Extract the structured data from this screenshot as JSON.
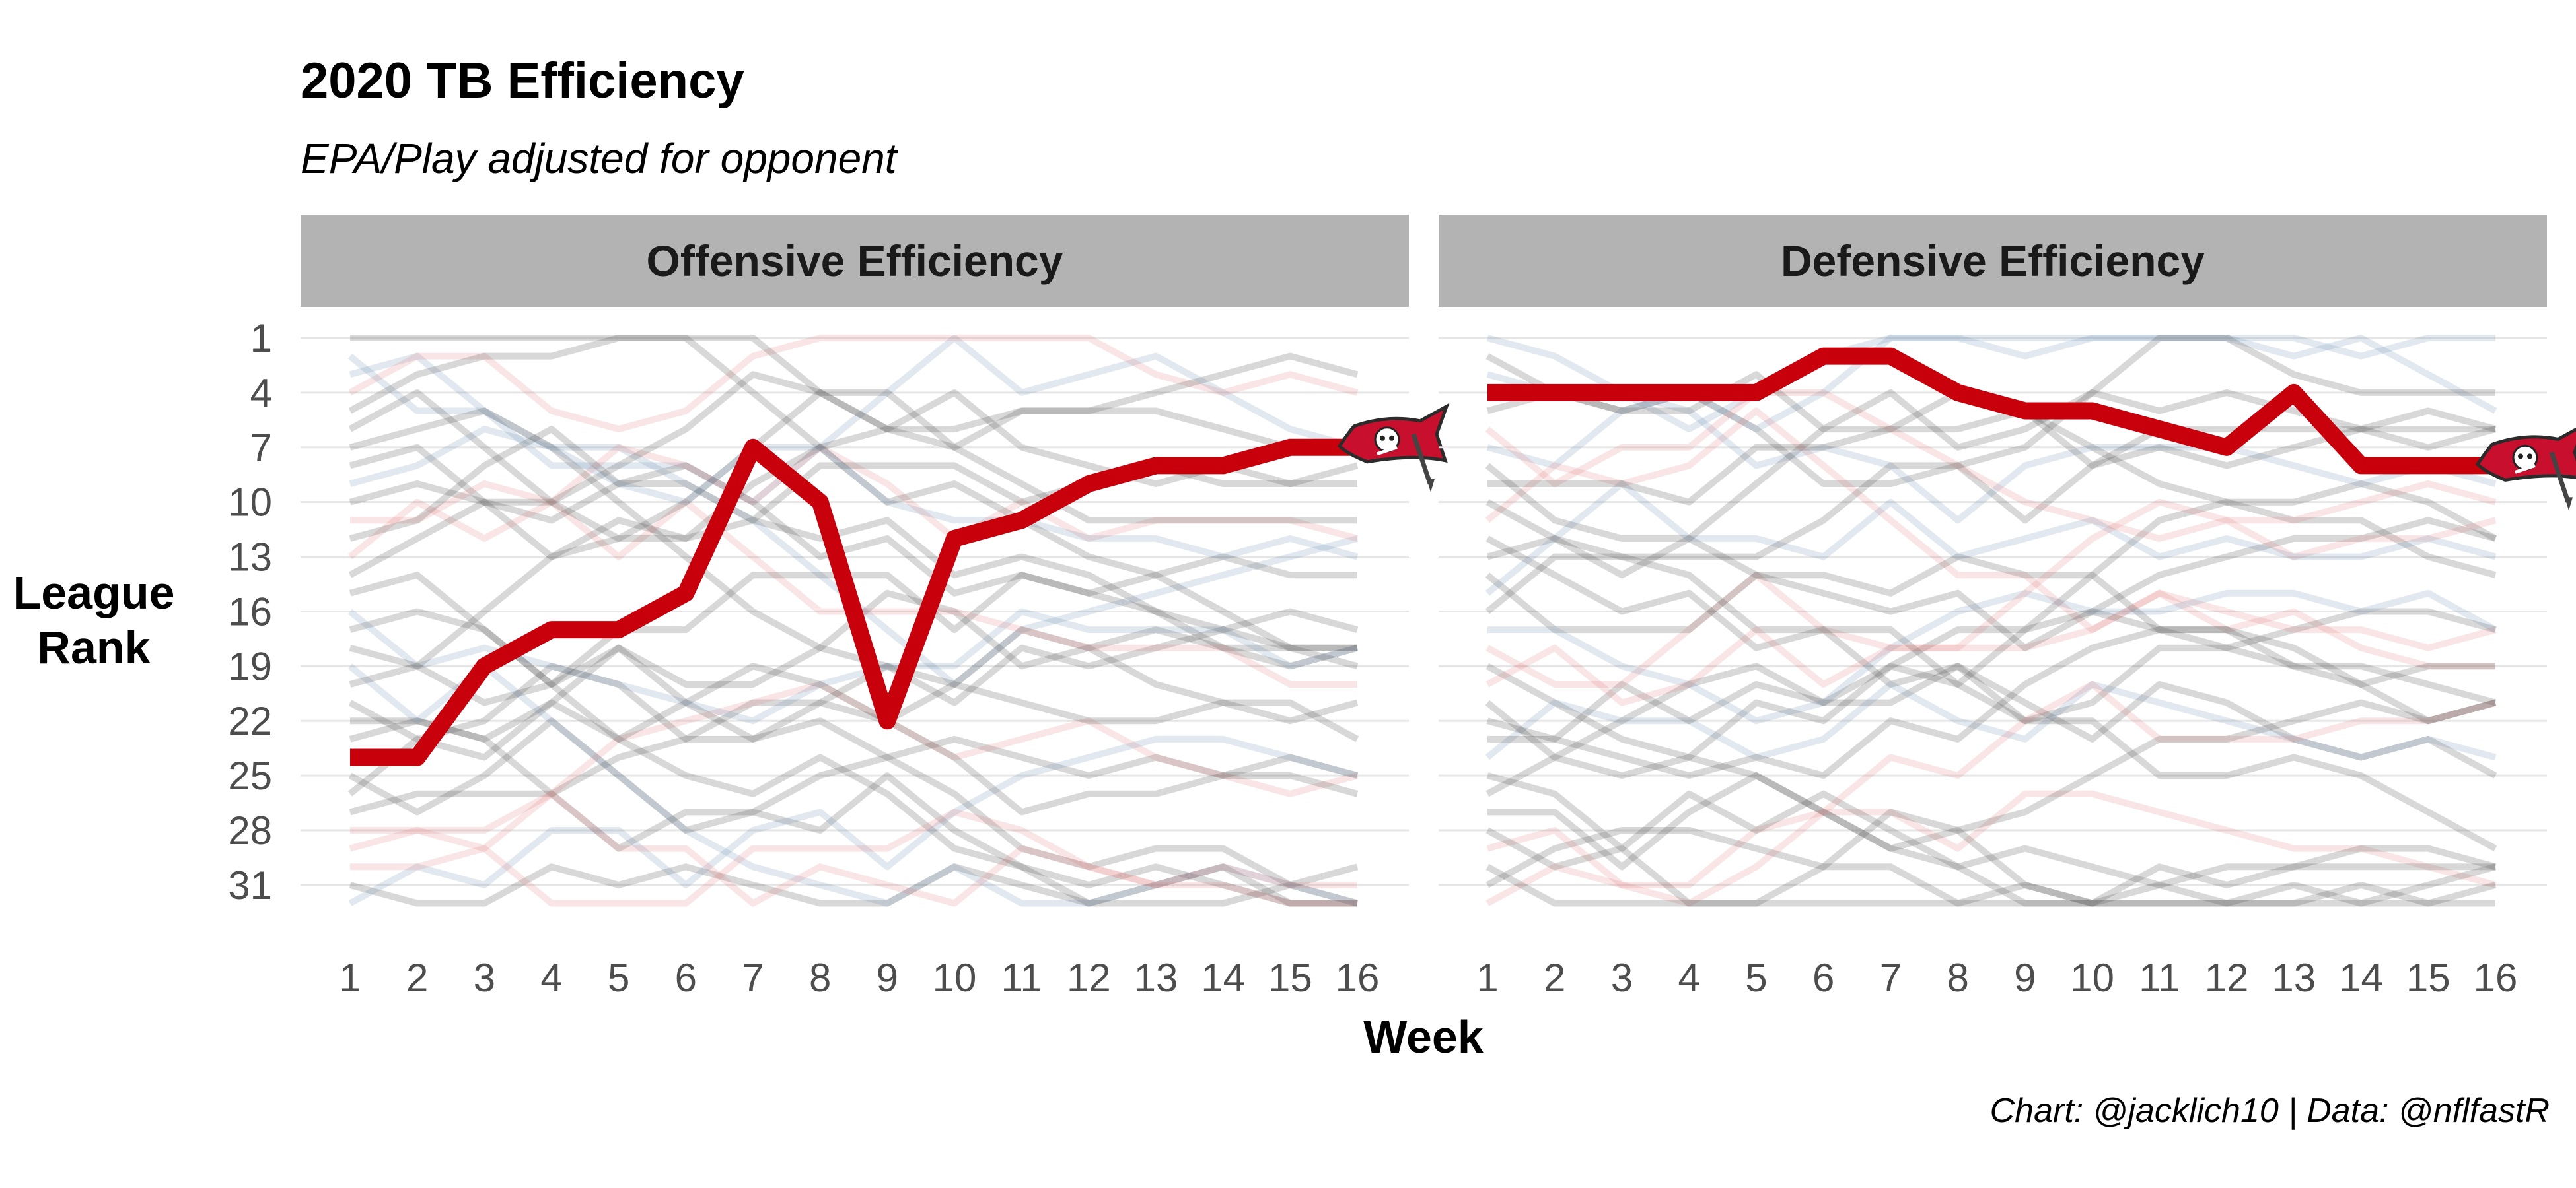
{
  "title": "2020 TB Efficiency",
  "subtitle": "EPA/Play adjusted for opponent",
  "caption": "Chart: @jacklich10 | Data: @nflfastR",
  "xlabel": "Week",
  "ylabel_lines": [
    "League",
    "Rank"
  ],
  "colors": {
    "highlight": "#C8000B",
    "strip_bg": "#b3b3b3",
    "gridline": "#e6e6e6",
    "background_gray": "#4d4d4d",
    "background_blue": "#5a7fa8",
    "background_red": "#e07070"
  },
  "chart_data": [
    {
      "type": "line",
      "panel": "Offensive Efficiency",
      "x": [
        1,
        2,
        3,
        4,
        5,
        6,
        7,
        8,
        9,
        10,
        11,
        12,
        13,
        14,
        15,
        16
      ],
      "y_tick_labels": [
        1,
        4,
        7,
        10,
        13,
        16,
        19,
        22,
        25,
        28,
        31
      ],
      "ylim": [
        32,
        1
      ],
      "y_reversed": true,
      "highlight_series": {
        "name": "TB",
        "values": [
          24,
          24,
          19,
          17,
          17,
          15,
          7,
          10,
          22,
          12,
          11,
          9,
          8,
          8,
          7,
          7
        ],
        "end_marker_icon": "buccaneers-flag-logo-icon"
      },
      "background_series_count": 31,
      "legend": "none"
    },
    {
      "type": "line",
      "panel": "Defensive Efficiency",
      "x": [
        1,
        2,
        3,
        4,
        5,
        6,
        7,
        8,
        9,
        10,
        11,
        12,
        13,
        14,
        15,
        16
      ],
      "y_tick_labels": [
        1,
        4,
        7,
        10,
        13,
        16,
        19,
        22,
        25,
        28,
        31
      ],
      "ylim": [
        32,
        1
      ],
      "y_reversed": true,
      "highlight_series": {
        "name": "TB",
        "values": [
          4,
          4,
          4,
          4,
          4,
          2,
          2,
          4,
          5,
          5,
          6,
          7,
          4,
          8,
          8,
          8
        ],
        "end_marker_icon": "buccaneers-flag-logo-icon"
      },
      "background_series_count": 31,
      "legend": "none"
    }
  ]
}
